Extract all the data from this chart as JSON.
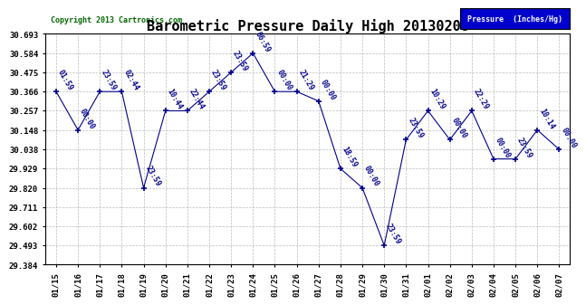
{
  "title": "Barometric Pressure Daily High 20130208",
  "copyright": "Copyright 2013 Cartronics.com",
  "legend_label": "Pressure  (Inches/Hg)",
  "background_color": "#ffffff",
  "line_color": "#00008b",
  "legend_bg": "#0000cc",
  "legend_text_color": "#ffffff",
  "dates": [
    "01/15",
    "01/16",
    "01/17",
    "01/18",
    "01/19",
    "01/20",
    "01/21",
    "01/22",
    "01/23",
    "01/24",
    "01/25",
    "01/26",
    "01/27",
    "01/28",
    "01/29",
    "01/30",
    "01/31",
    "02/01",
    "02/02",
    "02/03",
    "02/04",
    "02/05",
    "02/06",
    "02/07"
  ],
  "values": [
    30.366,
    30.148,
    30.366,
    30.366,
    29.82,
    30.257,
    30.257,
    30.366,
    30.475,
    30.584,
    30.366,
    30.366,
    30.312,
    29.929,
    29.82,
    29.493,
    30.093,
    30.257,
    30.093,
    30.257,
    29.984,
    29.984,
    30.148,
    30.038
  ],
  "point_labels": [
    "01:59",
    "00:00",
    "23:59",
    "02:44",
    "23:59",
    "10:44",
    "22:44",
    "23:59",
    "23:59",
    "06:59",
    "00:00",
    "21:29",
    "00:00",
    "18:59",
    "00:00",
    "23:59",
    "23:59",
    "10:29",
    "00:00",
    "22:29",
    "00:00",
    "23:59",
    "10:14",
    "00:00"
  ],
  "ylim": [
    29.384,
    30.693
  ],
  "yticks": [
    29.384,
    29.493,
    29.602,
    29.711,
    29.82,
    29.929,
    30.038,
    30.148,
    30.257,
    30.366,
    30.475,
    30.584,
    30.693
  ],
  "grid_color": "#aaaaaa",
  "title_color": "#000000",
  "copyright_color": "#006600",
  "tick_color": "#000000",
  "title_fontsize": 11,
  "label_fontsize": 6.0,
  "tick_fontsize": 6.5
}
